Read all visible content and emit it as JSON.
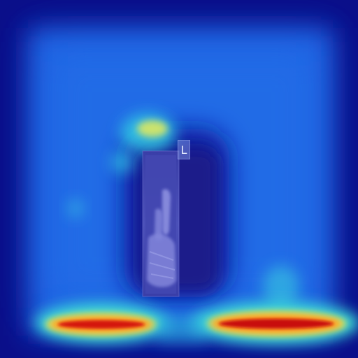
{
  "image": {
    "marker_label": "L",
    "colors": {
      "background_dark": "#0a0f8a",
      "field_blue": "#1b5fe0",
      "field_light": "#2a7ff0",
      "cyan": "#35e0e8",
      "yellow": "#f2e24a",
      "orange": "#ff8a1a",
      "red": "#d4140c",
      "radiograph_tint": "#6e74d8"
    }
  }
}
